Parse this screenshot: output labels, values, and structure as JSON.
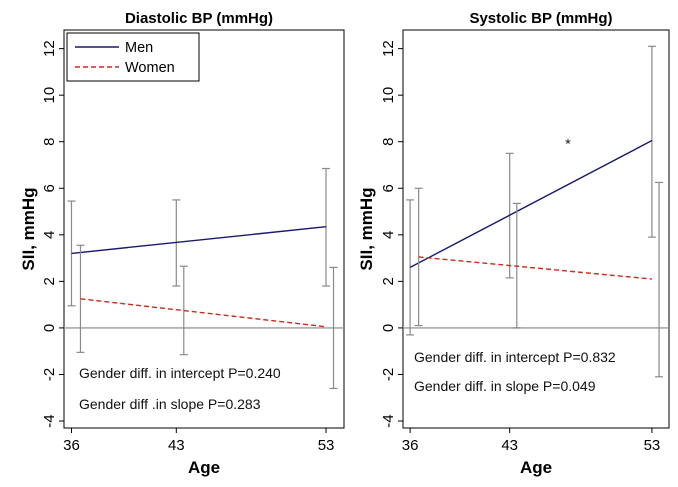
{
  "chart_data": [
    {
      "type": "line",
      "title": "Diastolic BP (mmHg)",
      "xlabel": "Age",
      "ylabel": "SII, mmHg",
      "x_ticks": [
        "36",
        "43",
        "53"
      ],
      "y_ticks": [
        "-4",
        "-2",
        "0",
        "2",
        "4",
        "6",
        "8",
        "10",
        "12"
      ],
      "xlim": [
        35.5,
        54.2
      ],
      "ylim": [
        -4.3,
        12.8
      ],
      "reference_line": 0,
      "series": [
        {
          "name": "Men",
          "color": "#1a1a6e",
          "dash": "solid",
          "line": [
            [
              36,
              3.2
            ],
            [
              53,
              4.35
            ]
          ],
          "ci": [
            [
              36,
              0.95,
              5.45
            ],
            [
              43,
              1.8,
              5.5
            ],
            [
              53,
              1.8,
              6.85
            ]
          ]
        },
        {
          "name": "Women",
          "color": "#cc2a1a",
          "dash": "dashed",
          "line": [
            [
              36.6,
              1.25
            ],
            [
              53,
              0.05
            ]
          ],
          "ci": [
            [
              36.6,
              -1.05,
              3.55
            ],
            [
              43.5,
              -1.15,
              2.65
            ],
            [
              53.5,
              -2.6,
              2.6
            ]
          ]
        }
      ],
      "annotations": [
        "Gender diff. in intercept P=0.240",
        "Gender diff .in slope P=0.283"
      ],
      "legend": {
        "entries": [
          "Men",
          "Women"
        ],
        "position": "top-left"
      }
    },
    {
      "type": "line",
      "title": "Systolic BP (mmHg)",
      "xlabel": "Age",
      "ylabel": "SII, mmHg",
      "x_ticks": [
        "36",
        "43",
        "53"
      ],
      "y_ticks": [
        "-4",
        "-2",
        "0",
        "2",
        "4",
        "6",
        "8",
        "10",
        "12"
      ],
      "xlim": [
        35.5,
        54.2
      ],
      "ylim": [
        -4.3,
        12.8
      ],
      "reference_line": 0,
      "series": [
        {
          "name": "Men",
          "color": "#1a1a6e",
          "dash": "solid",
          "line": [
            [
              36,
              2.6
            ],
            [
              53,
              8.05
            ]
          ],
          "ci": [
            [
              36,
              -0.3,
              5.5
            ],
            [
              43,
              2.15,
              7.5
            ],
            [
              53,
              3.9,
              12.1
            ]
          ]
        },
        {
          "name": "Women",
          "color": "#cc2a1a",
          "dash": "dashed",
          "line": [
            [
              36.6,
              3.05
            ],
            [
              53,
              2.1
            ]
          ],
          "ci": [
            [
              36.6,
              0.1,
              6.0
            ],
            [
              43.5,
              0.0,
              5.35
            ],
            [
              53.5,
              -2.1,
              6.25
            ]
          ]
        }
      ],
      "annotations": [
        "Gender diff. in intercept P=0.832",
        "Gender diff. in slope P=0.049"
      ],
      "marker": {
        "text": "*",
        "x": 47.1,
        "y": 7.7
      }
    }
  ]
}
